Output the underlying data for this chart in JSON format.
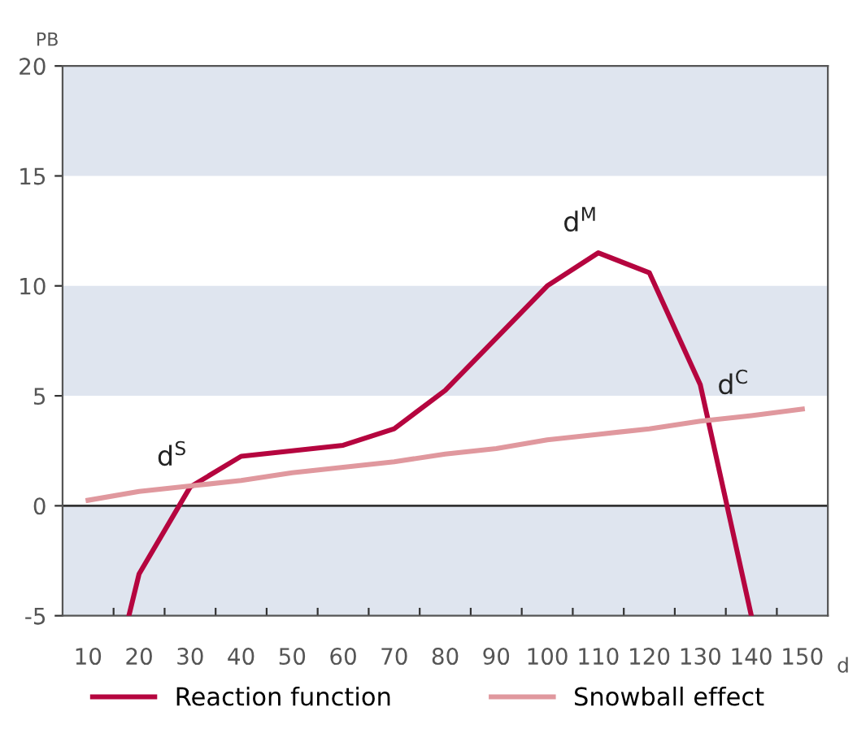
{
  "chart_data": {
    "type": "line",
    "xlabel": "d",
    "ylabel": "PB",
    "xlim": [
      5,
      155
    ],
    "ylim": [
      -5,
      20
    ],
    "xticks": [
      10,
      {
        "value": 15,
        "label": null
      },
      20,
      {
        "value": 25,
        "label": null
      },
      30,
      {
        "value": 35,
        "label": null
      },
      40,
      {
        "value": 45,
        "label": null
      },
      50,
      {
        "value": 55,
        "label": null
      },
      60,
      {
        "value": 65,
        "label": null
      },
      70,
      {
        "value": 75,
        "label": null
      },
      80,
      {
        "value": 85,
        "label": null
      },
      90,
      {
        "value": 95,
        "label": null
      },
      100,
      {
        "value": 105,
        "label": null
      },
      110,
      {
        "value": 115,
        "label": null
      },
      120,
      {
        "value": 125,
        "label": null
      },
      130,
      {
        "value": 135,
        "label": null
      },
      140,
      {
        "value": 145,
        "label": null
      },
      150
    ],
    "yticks": [
      -5,
      0,
      5,
      10,
      15,
      20
    ],
    "bands": [
      {
        "axis": "y",
        "from": 15,
        "to": 20,
        "color": "#dfe5ef"
      },
      {
        "axis": "y",
        "from": 5,
        "to": 10,
        "color": "#dfe5ef"
      },
      {
        "axis": "y",
        "from": -5,
        "to": 0,
        "color": "#dfe5ef"
      }
    ],
    "ref_lines": [
      {
        "axis": "y",
        "value": 0,
        "color": "#333333"
      }
    ],
    "series": [
      {
        "name": "Reaction function",
        "color": "#b5053f",
        "x": [
          18,
          20,
          30,
          40,
          60,
          70,
          80,
          100,
          110,
          120,
          130,
          140
        ],
        "values": [
          -5,
          -3.1,
          0.85,
          2.25,
          2.75,
          3.5,
          5.25,
          10,
          11.5,
          10.6,
          5.5,
          -5
        ]
      },
      {
        "name": "Snowball effect",
        "color": "#e0989e",
        "x": [
          10,
          20,
          30,
          40,
          50,
          60,
          70,
          80,
          90,
          100,
          110,
          120,
          130,
          140,
          150
        ],
        "values": [
          0.25,
          0.65,
          0.9,
          1.15,
          1.5,
          1.75,
          2.0,
          2.35,
          2.6,
          3.0,
          3.25,
          3.5,
          3.85,
          4.1,
          4.4
        ]
      }
    ],
    "annotations": [
      {
        "text": "d$^{S}$",
        "x": 30,
        "y": 0.85
      },
      {
        "text": "d$^{M}$",
        "x": 110,
        "y": 11.5
      },
      {
        "text": "d$^{C}$",
        "x": 140,
        "y": 4.1
      }
    ],
    "legend": "bottom",
    "grid": false,
    "marker": "none",
    "line_style": "solid"
  }
}
